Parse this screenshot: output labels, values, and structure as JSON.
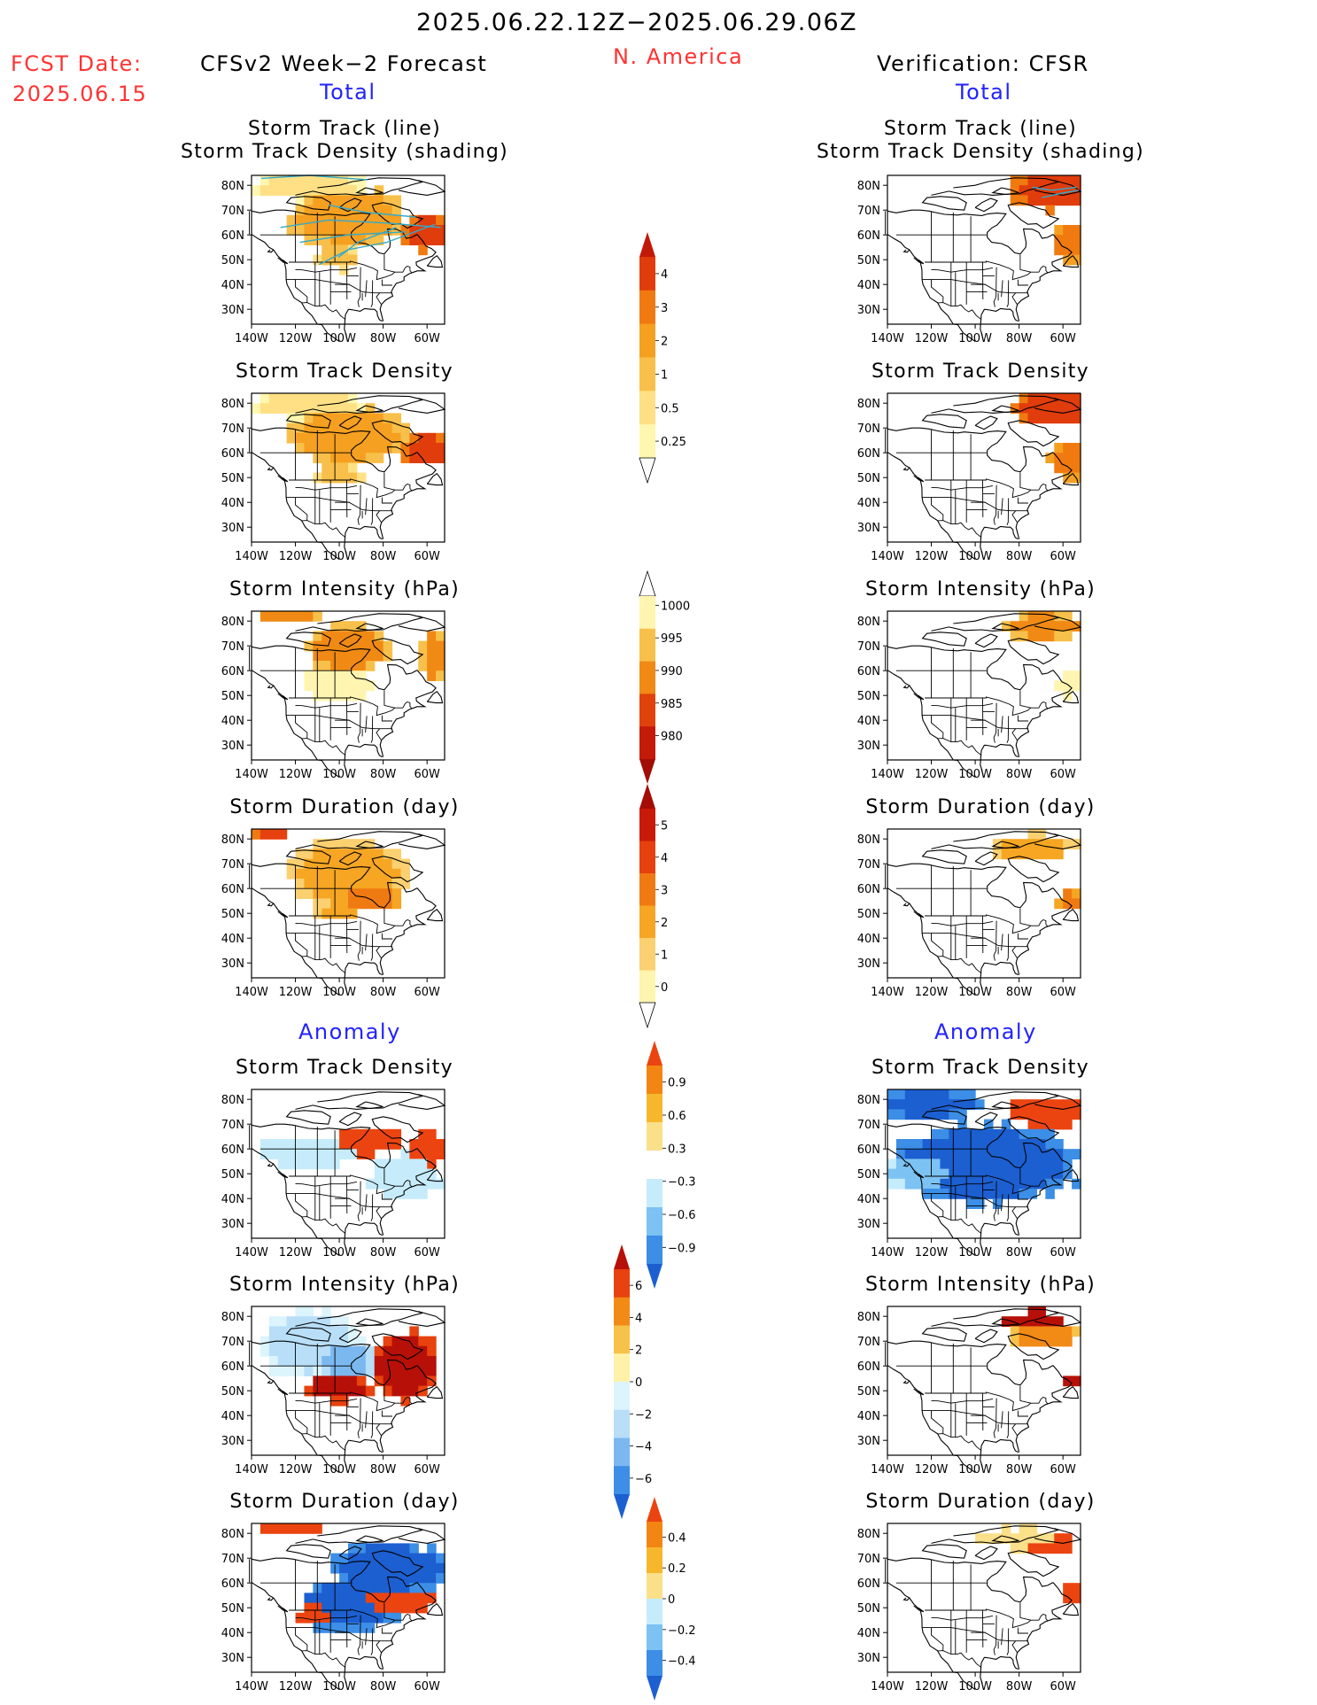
{
  "header": {
    "period": "2025.06.22.12Z−2025.06.29.06Z",
    "region": "N. America",
    "fcst_label": "FCST Date:",
    "fcst_date": "2025.06.15",
    "left_title": "CFSv2 Week−2 Forecast",
    "right_title": "Verification: CFSR",
    "total_label": "Total",
    "anomaly_label": "Anomaly"
  },
  "colors": {
    "header_red": "#ff3333",
    "section_blue": "#2222ff",
    "text": "#000000",
    "track_line": "#33aacc"
  },
  "map_axes": {
    "lat_labels": [
      "80N",
      "70N",
      "60N",
      "50N",
      "40N",
      "30N"
    ],
    "lon_labels": [
      "140W",
      "120W",
      "100W",
      "80W",
      "60W"
    ]
  },
  "panels": {
    "left": [
      {
        "title": [
          "Storm Track (line)",
          "Storm Track Density (shading)"
        ],
        "field": "density",
        "scale": "track",
        "lines": true
      },
      {
        "title": [
          "Storm Track Density"
        ],
        "field": "density",
        "scale": "track",
        "lines": false
      },
      {
        "title": [
          "Storm Intensity (hPa)"
        ],
        "field": "intensity",
        "scale": "intensity",
        "lines": false
      },
      {
        "title": [
          "Storm Duration (day)"
        ],
        "field": "duration",
        "scale": "duration",
        "lines": false
      },
      {
        "title": [
          "Storm Track Density"
        ],
        "field": "density_anom",
        "scale": "density_anom",
        "lines": false
      },
      {
        "title": [
          "Storm Intensity (hPa)"
        ],
        "field": "intensity_anom",
        "scale": "intensity_anom",
        "lines": false
      },
      {
        "title": [
          "Storm Duration (day)"
        ],
        "field": "duration_anom",
        "scale": "duration_anom",
        "lines": false
      }
    ],
    "right": [
      {
        "title": [
          "Storm Track (line)",
          "Storm Track Density (shading)"
        ],
        "field": "density",
        "scale": "track",
        "lines": true
      },
      {
        "title": [
          "Storm Track Density"
        ],
        "field": "density",
        "scale": "track",
        "lines": false
      },
      {
        "title": [
          "Storm Intensity (hPa)"
        ],
        "field": "intensity",
        "scale": "intensity",
        "lines": false
      },
      {
        "title": [
          "Storm Duration (day)"
        ],
        "field": "duration",
        "scale": "duration",
        "lines": false
      },
      {
        "title": [
          "Storm Track Density"
        ],
        "field": "density_anom",
        "scale": "density_anom",
        "lines": false
      },
      {
        "title": [
          "Storm Intensity (hPa)"
        ],
        "field": "intensity_anom",
        "scale": "intensity_anom",
        "lines": false
      },
      {
        "title": [
          "Storm Duration (day)"
        ],
        "field": "duration_anom",
        "scale": "duration_anom",
        "lines": false
      }
    ]
  },
  "colorbars": [
    {
      "id": "track",
      "labels": [
        "0.25",
        "0.5",
        "1",
        "2",
        "3",
        "4"
      ],
      "colors": [
        "#ffffff",
        "#fff7b0",
        "#ffe085",
        "#f8c04a",
        "#f5a020",
        "#f07a10",
        "#e03c0c",
        "#c21a08"
      ],
      "direction": "up"
    },
    {
      "id": "intensity",
      "labels": [
        "1000",
        "995",
        "990",
        "985",
        "980"
      ],
      "colors": [
        "#ffffff",
        "#fff5b0",
        "#f7c04a",
        "#f08a15",
        "#e0420c",
        "#c41a08",
        "#a00e06"
      ],
      "direction": "down"
    },
    {
      "id": "duration",
      "labels": [
        "0",
        "1",
        "2",
        "3",
        "4",
        "5"
      ],
      "colors": [
        "#ffffff",
        "#fff4b0",
        "#fbd070",
        "#f6a623",
        "#f07a12",
        "#e6400e",
        "#c81a08",
        "#a30d05"
      ],
      "direction": "up"
    },
    {
      "id": "density_anom",
      "labels": [
        "−0.9",
        "−0.6",
        "−0.3",
        "0.3",
        "0.6",
        "0.9"
      ],
      "colors": [
        "#1c5fd0",
        "#3c8ee6",
        "#7cc2f3",
        "#c6ecfb",
        "#ffffff",
        "#fbe08a",
        "#f7b72c",
        "#f38612",
        "#ec4410"
      ],
      "direction": "both"
    },
    {
      "id": "intensity_anom",
      "labels": [
        "−6",
        "−4",
        "−2",
        "0",
        "2",
        "4",
        "6"
      ],
      "colors": [
        "#1c5fd0",
        "#3c8ee6",
        "#7cb8f0",
        "#b8def8",
        "#dcf4fc",
        "#fff2a8",
        "#f7c24a",
        "#f28a16",
        "#e8420e",
        "#b71008"
      ],
      "direction": "both"
    },
    {
      "id": "duration_anom",
      "labels": [
        "−0.4",
        "−0.2",
        "0",
        "0.2",
        "0.4"
      ],
      "colors": [
        "#1c5fd0",
        "#3c8ee6",
        "#7cc2f3",
        "#c6ecfb",
        "#fbe08a",
        "#f7b72c",
        "#f38612",
        "#ec4410"
      ],
      "direction": "both"
    }
  ]
}
